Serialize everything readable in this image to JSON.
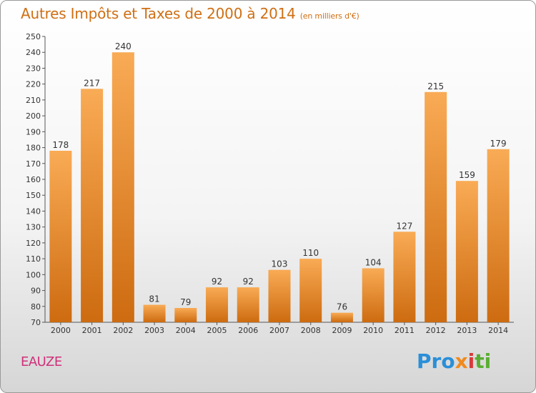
{
  "title": "Autres Impôts et Taxes de 2000 à 2014",
  "title_unit": "(en milliers d'€)",
  "city": "EAUZE",
  "logo": {
    "p1": "Pro",
    "p2": "x",
    "p3": "i",
    "p4": "ti"
  },
  "colors": {
    "bar_light": "#f8a852",
    "bar_dark": "#cf6c10",
    "title": "#cf6f14",
    "city": "#d0307a"
  },
  "chart_data": {
    "type": "bar",
    "title": "Autres Impôts et Taxes de 2000 à 2014",
    "ylabel": "",
    "xlabel": "",
    "categories": [
      "2000",
      "2001",
      "2002",
      "2003",
      "2004",
      "2005",
      "2006",
      "2007",
      "2008",
      "2009",
      "2010",
      "2011",
      "2012",
      "2013",
      "2014"
    ],
    "values": [
      178,
      217,
      240,
      81,
      79,
      92,
      92,
      103,
      110,
      76,
      104,
      127,
      215,
      159,
      179
    ],
    "ylim": [
      70,
      250
    ],
    "yticks": [
      70,
      80,
      90,
      100,
      110,
      120,
      130,
      140,
      150,
      160,
      170,
      180,
      190,
      200,
      210,
      220,
      230,
      240,
      250
    ],
    "grid": false
  }
}
